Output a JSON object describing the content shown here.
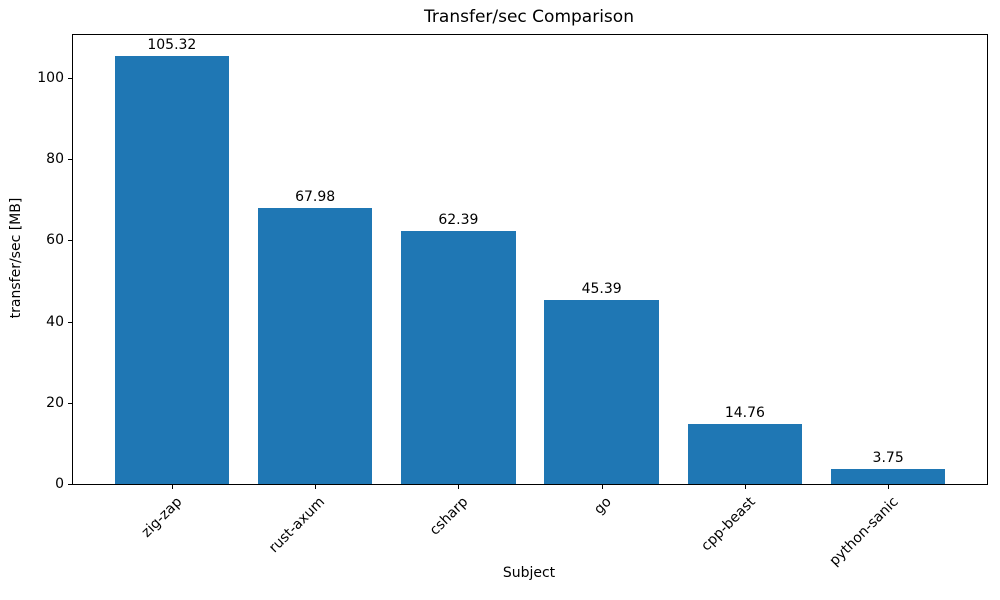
{
  "chart_data": {
    "type": "bar",
    "title": "Transfer/sec Comparison",
    "xlabel": "Subject",
    "ylabel": "transfer/sec [MB]",
    "categories": [
      "zig-zap",
      "rust-axum",
      "csharp",
      "go",
      "cpp-beast",
      "python-sanic"
    ],
    "values": [
      105.32,
      67.98,
      62.39,
      45.39,
      14.76,
      3.75
    ],
    "value_labels": [
      "105.32",
      "67.98",
      "62.39",
      "45.39",
      "14.76",
      "3.75"
    ],
    "yticks": [
      0,
      20,
      40,
      60,
      80,
      100
    ],
    "ylim": [
      0,
      110.6
    ],
    "xlim": [
      -0.69,
      5.69
    ],
    "bar_width_units": 0.8,
    "bar_color": "#1f77b4",
    "grid": false,
    "legend": "none",
    "xtick_label_rotation_deg": 45
  }
}
